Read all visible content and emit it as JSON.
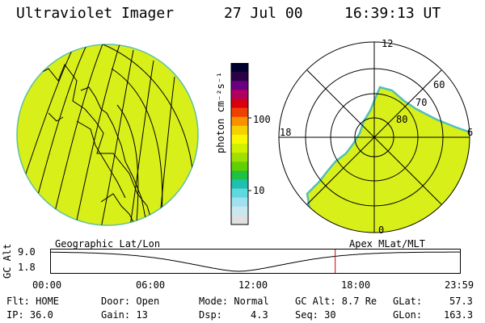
{
  "header": {
    "instrument": "Ultraviolet Imager",
    "date": "27 Jul 00",
    "time": "16:39:13 UT"
  },
  "colorbar": {
    "unit": "photon cm⁻²s⁻¹",
    "ticks": [
      "100",
      "10"
    ],
    "colors": [
      "#000030",
      "#2c0046",
      "#6a0080",
      "#b00060",
      "#d80010",
      "#f04000",
      "#f89000",
      "#f8d000",
      "#f8f800",
      "#d0f000",
      "#a0e000",
      "#60d000",
      "#20c040",
      "#20c0b0",
      "#60d8e0",
      "#a0e0f0",
      "#c8e8f0",
      "#e0e0e0"
    ]
  },
  "left_map": {
    "projection_label": "Geographic Lat/Lon",
    "fill_color": "#d8ef1a"
  },
  "polar": {
    "projection_label": "Apex MLat/MLT",
    "mlt_labels": [
      "12",
      "18",
      "6",
      "0"
    ],
    "mlat_labels": [
      "60",
      "70",
      "80"
    ],
    "fill_color": "#d8ef1a",
    "edge_color": "#50c0b8"
  },
  "alt_plot": {
    "axis_label": "GC Alt",
    "y_ticks": [
      "9.0",
      "1.8"
    ],
    "x_ticks": [
      "00:00",
      "06:00",
      "12:00",
      "18:00",
      "23:59"
    ],
    "current_time_hours": 16.65,
    "curve_color": "#000000",
    "marker_color": "#cc0000"
  },
  "footer": {
    "flt": "Flt: HOME",
    "ip": "IP: 36.0",
    "door": "Door: Open",
    "gain": "Gain: 13",
    "mode": "Mode: Normal",
    "dsp_label": "Dsp:",
    "dsp_value": "4.3",
    "gc_alt": "GC Alt: 8.7 Re",
    "seq": "Seq: 30",
    "glat_label": "GLat:",
    "glat_value": "57.3",
    "glon_label": "GLon:",
    "glon_value": "163.3"
  }
}
